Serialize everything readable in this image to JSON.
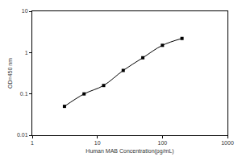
{
  "chart_data": {
    "type": "line",
    "x_label": "Human MAB Concentration(pg/mL)",
    "y_label": "OD=450 nm",
    "x": [
      3.125,
      6.25,
      12.5,
      25,
      50,
      100,
      200
    ],
    "values": [
      0.05,
      0.1,
      0.16,
      0.37,
      0.75,
      1.5,
      2.2
    ],
    "color": "#000000",
    "marker": "square",
    "line_style": "spline",
    "log": true,
    "grid": false,
    "xlim": [
      1,
      1000
    ],
    "xticks": [
      1,
      10,
      100,
      1000
    ],
    "ylim": [
      0.01,
      10
    ],
    "yticks": [
      0.01,
      0.1,
      1,
      10
    ]
  }
}
